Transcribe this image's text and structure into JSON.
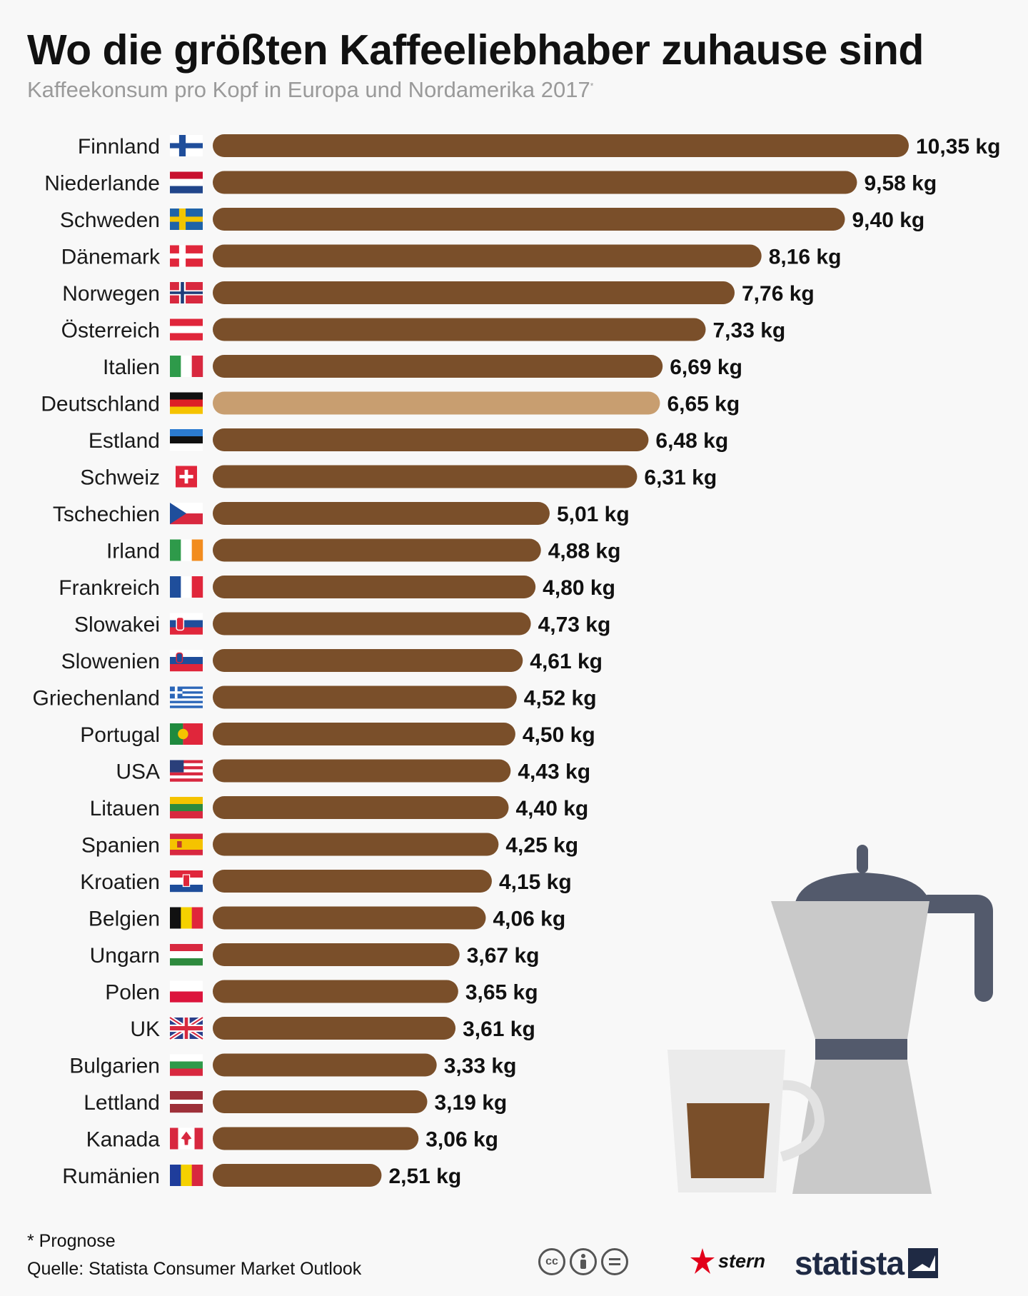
{
  "title": "Wo die größten Kaffeeliebhaber zuhause sind",
  "subtitle": "Kaffeekonsum pro Kopf in Europa und Nordamerika 2017",
  "subtitle_marker": "*",
  "footnote": "* Prognose",
  "source": "Quelle: Statista Consumer Market Outlook",
  "logos": {
    "stern": "stern",
    "statista": "statista"
  },
  "icons": [
    "cc-icon",
    "attribution-icon",
    "no-derivatives-icon",
    "coffee-pot-illustration",
    "coffee-cup-illustration"
  ],
  "colors": {
    "bar": "#7a4f2a",
    "highlight": "#c89e70",
    "background": "#f8f8f8"
  },
  "chart_data": {
    "type": "bar",
    "orientation": "horizontal",
    "title": "Wo die größten Kaffeeliebhaber zuhause sind",
    "subtitle": "Kaffeekonsum pro Kopf in Europa und Nordamerika 2017*",
    "unit": "kg",
    "highlight_category": "Deutschland",
    "categories": [
      "Finnland",
      "Niederlande",
      "Schweden",
      "Dänemark",
      "Norwegen",
      "Österreich",
      "Italien",
      "Deutschland",
      "Estland",
      "Schweiz",
      "Tschechien",
      "Irland",
      "Frankreich",
      "Slowakei",
      "Slowenien",
      "Griechenland",
      "Portugal",
      "USA",
      "Litauen",
      "Spanien",
      "Kroatien",
      "Belgien",
      "Ungarn",
      "Polen",
      "UK",
      "Bulgarien",
      "Lettland",
      "Kanada",
      "Rumänien"
    ],
    "values": [
      10.35,
      9.58,
      9.4,
      8.16,
      7.76,
      7.33,
      6.69,
      6.65,
      6.48,
      6.31,
      5.01,
      4.88,
      4.8,
      4.73,
      4.61,
      4.52,
      4.5,
      4.43,
      4.4,
      4.25,
      4.15,
      4.06,
      3.67,
      3.65,
      3.61,
      3.33,
      3.19,
      3.06,
      2.51
    ],
    "value_labels": [
      "10,35 kg",
      "9,58 kg",
      "9,40 kg",
      "8,16 kg",
      "7,76 kg",
      "7,33 kg",
      "6,69 kg",
      "6,65 kg",
      "6,48 kg",
      "6,31 kg",
      "5,01 kg",
      "4,88 kg",
      "4,80 kg",
      "4,73 kg",
      "4,61 kg",
      "4,52 kg",
      "4,50 kg",
      "4,43 kg",
      "4,40 kg",
      "4,25 kg",
      "4,15 kg",
      "4,06 kg",
      "3,67 kg",
      "3,65 kg",
      "3,61 kg",
      "3,33 kg",
      "3,19 kg",
      "3,06 kg",
      "2,51 kg"
    ],
    "xlim": [
      0,
      10.35
    ],
    "grid": false,
    "legend": "none"
  }
}
